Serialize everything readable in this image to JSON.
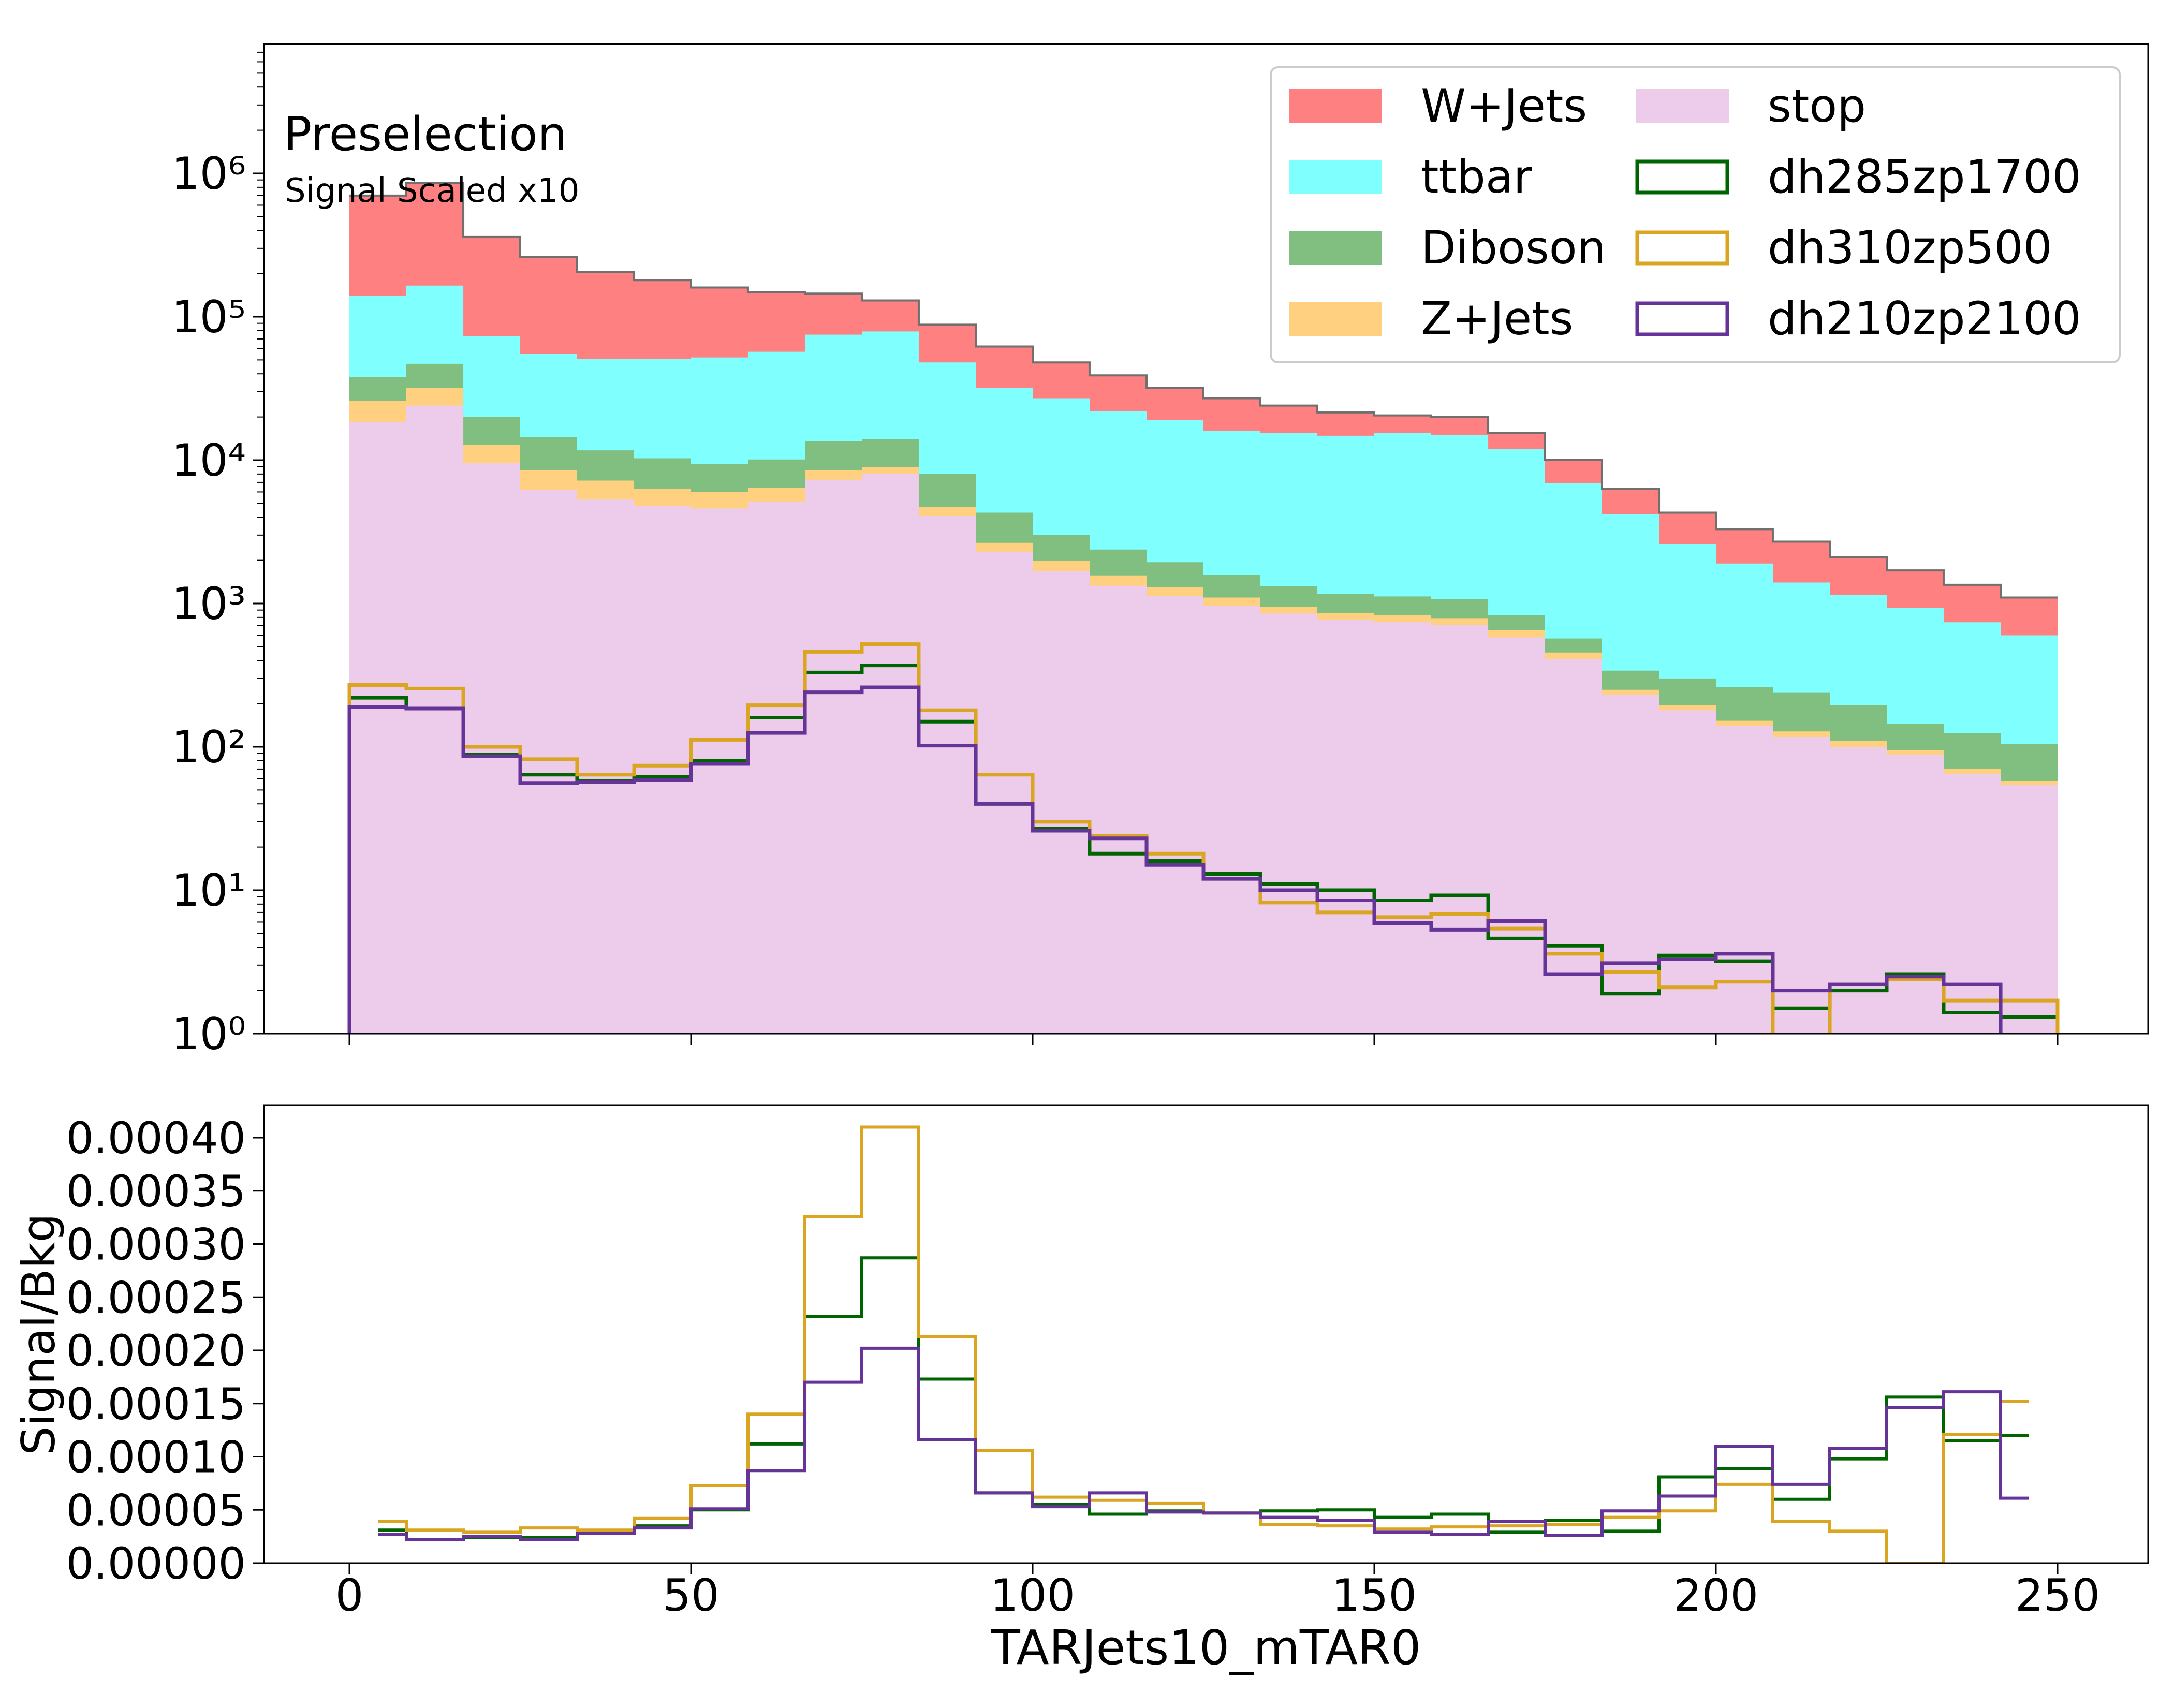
{
  "chart_data": {
    "type": "histogram",
    "xlabel": "TARJets10_mTAR0",
    "bin_edges": [
      0,
      8.33,
      16.67,
      25,
      33.33,
      41.67,
      50,
      58.33,
      66.67,
      75,
      83.33,
      91.67,
      100,
      108.33,
      116.67,
      125,
      133.33,
      141.67,
      150,
      158.33,
      166.67,
      175,
      183.33,
      191.67,
      200,
      208.33,
      216.67,
      225,
      233.33,
      241.67,
      250
    ],
    "x_ticks": [
      "0",
      "50",
      "100",
      "150",
      "200",
      "250"
    ],
    "x_tick_values": [
      0,
      50,
      100,
      150,
      200,
      250
    ],
    "top_panel": {
      "yscale": "log",
      "ylim": [
        1,
        10000000
      ],
      "y_ticks": [
        "10⁰",
        "10¹",
        "10²",
        "10³",
        "10⁴",
        "10⁵",
        "10⁶"
      ],
      "y_tick_values": [
        1,
        10,
        100,
        1000,
        10000,
        100000,
        1000000
      ],
      "annotation": "Preselection",
      "annotation_sub": "Signal Scaled x10",
      "stacked_backgrounds_cumulative": [
        {
          "name": "stop",
          "color": "#ecccea",
          "top": [
            18500,
            24000,
            9500,
            6200,
            5300,
            4800,
            4600,
            5100,
            7300,
            8000,
            4100,
            2300,
            1680,
            1330,
            1130,
            960,
            850,
            770,
            740,
            710,
            580,
            410,
            230,
            180,
            140,
            118,
            100,
            88,
            65,
            54
          ]
        },
        {
          "name": "Z+Jets",
          "color": "#ffd080",
          "top": [
            26000,
            32000,
            12800,
            8500,
            7200,
            6300,
            6000,
            6400,
            8500,
            8900,
            4700,
            2650,
            1990,
            1570,
            1300,
            1100,
            950,
            860,
            830,
            790,
            650,
            455,
            250,
            195,
            152,
            128,
            110,
            95,
            70,
            58
          ]
        },
        {
          "name": "Diboson",
          "color": "#80bf80",
          "top": [
            38000,
            47000,
            20000,
            14500,
            11700,
            10300,
            9400,
            10100,
            13500,
            14000,
            8000,
            4300,
            3000,
            2380,
            1940,
            1580,
            1320,
            1170,
            1120,
            1070,
            830,
            570,
            340,
            300,
            260,
            240,
            195,
            145,
            125,
            105
          ]
        },
        {
          "name": "ttbar",
          "color": "#80ffff",
          "top": [
            140000,
            165000,
            73000,
            55000,
            51000,
            51000,
            52000,
            57000,
            75000,
            79000,
            48000,
            32000,
            27000,
            22000,
            19000,
            16000,
            15500,
            14800,
            15500,
            15000,
            12000,
            6900,
            4200,
            2600,
            1900,
            1400,
            1150,
            930,
            740,
            600
          ]
        },
        {
          "name": "W+Jets",
          "color": "#ff8080",
          "top": [
            700000,
            860000,
            360000,
            260000,
            205000,
            180000,
            160000,
            148000,
            145000,
            130000,
            88000,
            62000,
            48000,
            39000,
            32000,
            27000,
            24000,
            21500,
            20500,
            20000,
            15500,
            10000,
            6300,
            4300,
            3300,
            2700,
            2100,
            1700,
            1350,
            1100
          ]
        }
      ],
      "signals": [
        {
          "name": "dh285zp1700",
          "color": "#006400",
          "values": [
            220,
            185,
            88,
            64,
            58,
            62,
            80,
            160,
            330,
            370,
            150,
            40,
            27,
            18,
            16,
            13,
            11,
            10,
            8.5,
            9.2,
            4.6,
            4.1,
            1.9,
            3.5,
            3.2,
            1.5,
            2.0,
            2.6,
            1.4,
            1.3
          ]
        },
        {
          "name": "dh310zp500",
          "color": "#daa520",
          "values": [
            270,
            255,
            100,
            82,
            64,
            74,
            112,
            195,
            460,
            520,
            180,
            64,
            30,
            24,
            18,
            12,
            8.2,
            7.0,
            6.5,
            6.8,
            5.4,
            3.6,
            2.7,
            2.1,
            2.3,
            0.0,
            2.2,
            2.4,
            1.7,
            1.7
          ]
        },
        {
          "name": "dh210zp2100",
          "color": "#663399",
          "values": [
            190,
            185,
            86,
            56,
            57,
            59,
            76,
            125,
            240,
            260,
            102,
            40,
            26,
            23,
            15,
            12,
            10,
            8.5,
            5.9,
            5.3,
            6.1,
            2.6,
            3.1,
            3.3,
            3.6,
            2.0,
            2.2,
            2.5,
            2.2,
            0.0
          ]
        }
      ]
    },
    "bottom_panel": {
      "ylabel": "Signal/Bkg",
      "ylim": [
        0,
        0.00043
      ],
      "y_ticks": [
        "0.00000",
        "0.00005",
        "0.00010",
        "0.00015",
        "0.00020",
        "0.00025",
        "0.00030",
        "0.00035",
        "0.00040"
      ],
      "y_tick_values": [
        0,
        5e-05,
        0.0001,
        0.00015,
        0.0002,
        0.00025,
        0.0003,
        0.00035,
        0.0004
      ],
      "series": [
        {
          "name": "dh285zp1700",
          "color": "#006400",
          "values": [
            3.1e-05,
            2.2e-05,
            2.4e-05,
            2.4e-05,
            2.8e-05,
            3.5e-05,
            5e-05,
            0.000112,
            0.000232,
            0.000287,
            0.000173,
            6.6e-05,
            5.5e-05,
            4.6e-05,
            4.9e-05,
            4.7e-05,
            4.9e-05,
            5e-05,
            4.3e-05,
            4.6e-05,
            2.9e-05,
            4e-05,
            3e-05,
            8.1e-05,
            8.9e-05,
            6e-05,
            9.8e-05,
            0.000156,
            0.000115,
            0.00012
          ]
        },
        {
          "name": "dh310zp500",
          "color": "#daa520",
          "values": [
            3.9e-05,
            3.1e-05,
            2.9e-05,
            3.3e-05,
            3.1e-05,
            4.2e-05,
            7.3e-05,
            0.00014,
            0.000326,
            0.00041,
            0.000213,
            0.000106,
            6.2e-05,
            5.9e-05,
            5.6e-05,
            4.7e-05,
            3.6e-05,
            3.5e-05,
            3.2e-05,
            3.4e-05,
            3.5e-05,
            3.6e-05,
            4.3e-05,
            4.9e-05,
            7.4e-05,
            3.9e-05,
            3e-05,
            0.0,
            0.000121,
            0.000152
          ]
        },
        {
          "name": "dh210zp2100",
          "color": "#663399",
          "values": [
            2.7e-05,
            2.2e-05,
            2.5e-05,
            2.2e-05,
            2.8e-05,
            3.3e-05,
            5.1e-05,
            8.7e-05,
            0.00017,
            0.000202,
            0.000116,
            6.6e-05,
            5.3e-05,
            6.6e-05,
            4.8e-05,
            4.7e-05,
            4.3e-05,
            4e-05,
            2.9e-05,
            2.7e-05,
            3.9e-05,
            2.6e-05,
            4.9e-05,
            6.3e-05,
            0.00011,
            7.4e-05,
            0.000108,
            0.000146,
            0.000161,
            6.1e-05
          ]
        }
      ]
    }
  },
  "legend": {
    "col1": [
      {
        "label": "W+Jets",
        "color": "#ff8080",
        "style": "fill"
      },
      {
        "label": "ttbar",
        "color": "#80ffff",
        "style": "fill"
      },
      {
        "label": "Diboson",
        "color": "#80bf80",
        "style": "fill"
      },
      {
        "label": "Z+Jets",
        "color": "#ffd080",
        "style": "fill"
      }
    ],
    "col2": [
      {
        "label": "stop",
        "color": "#ecccea",
        "style": "fill"
      },
      {
        "label": "dh285zp1700",
        "color": "#006400",
        "style": "outline"
      },
      {
        "label": "dh310zp500",
        "color": "#daa520",
        "style": "outline"
      },
      {
        "label": "dh210zp2100",
        "color": "#663399",
        "style": "outline"
      }
    ]
  }
}
